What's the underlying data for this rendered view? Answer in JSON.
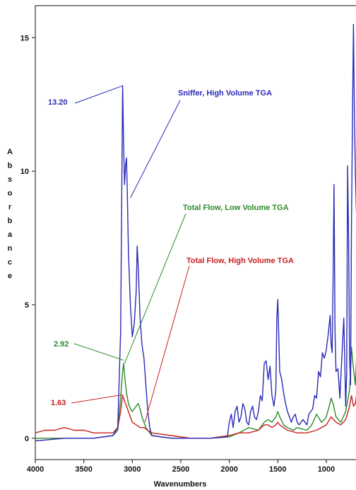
{
  "chart_data": {
    "type": "line",
    "xlabel": "Wavenumbers",
    "ylabel": "Absorbance",
    "x_reversed": true,
    "xlim": [
      4000,
      650
    ],
    "ylim": [
      -0.8,
      16.2
    ],
    "x_ticks": [
      4000,
      3500,
      3000,
      2500,
      2000,
      1500,
      1000
    ],
    "x_tick_labels": [
      "4000",
      "3500",
      "3000",
      "2500",
      "2000",
      "1500",
      "1000"
    ],
    "y_ticks": [
      0,
      5,
      10,
      15
    ],
    "y_tick_labels": [
      "0",
      "5",
      "10",
      "15"
    ],
    "grid": false,
    "series": [
      {
        "name": "Sniffer, High Volume TGA",
        "color": "#2a2ab8",
        "x": [
          4000,
          3700,
          3400,
          3200,
          3150,
          3120,
          3100,
          3090,
          3080,
          3070,
          3060,
          3050,
          3040,
          3020,
          3000,
          2980,
          2960,
          2950,
          2940,
          2920,
          2900,
          2880,
          2860,
          2840,
          2820,
          2800,
          2600,
          2400,
          2200,
          2020,
          2000,
          1980,
          1960,
          1940,
          1920,
          1900,
          1880,
          1860,
          1840,
          1820,
          1800,
          1780,
          1760,
          1740,
          1720,
          1700,
          1680,
          1660,
          1640,
          1620,
          1600,
          1580,
          1560,
          1540,
          1520,
          1510,
          1500,
          1490,
          1480,
          1460,
          1440,
          1420,
          1400,
          1380,
          1360,
          1340,
          1320,
          1300,
          1280,
          1260,
          1240,
          1220,
          1200,
          1180,
          1160,
          1140,
          1120,
          1100,
          1080,
          1060,
          1040,
          1020,
          1000,
          980,
          960,
          950,
          940,
          930,
          920,
          910,
          900,
          880,
          860,
          840,
          820,
          810,
          800,
          790,
          780,
          770,
          760,
          750,
          740,
          730,
          720,
          710,
          700,
          690,
          680,
          670,
          660
        ],
        "y": [
          -0.1,
          0.0,
          0.0,
          0.1,
          0.4,
          4.0,
          13.2,
          11.0,
          9.5,
          10.2,
          10.5,
          9.0,
          7.0,
          5.0,
          3.8,
          4.3,
          5.5,
          7.2,
          6.5,
          4.5,
          3.5,
          3.0,
          2.0,
          1.0,
          0.4,
          0.1,
          0.0,
          0.0,
          0.0,
          0.05,
          0.6,
          0.9,
          0.4,
          1.0,
          1.2,
          0.6,
          0.8,
          1.3,
          1.1,
          0.6,
          0.5,
          1.0,
          1.2,
          0.8,
          0.7,
          1.0,
          1.6,
          1.4,
          2.8,
          2.9,
          2.2,
          2.7,
          1.6,
          1.2,
          1.8,
          4.5,
          5.2,
          3.8,
          2.5,
          2.2,
          1.7,
          1.3,
          1.0,
          0.8,
          0.6,
          0.8,
          0.9,
          0.6,
          0.5,
          0.6,
          0.7,
          0.6,
          0.5,
          0.9,
          1.0,
          1.1,
          1.6,
          1.5,
          2.5,
          2.3,
          3.2,
          3.0,
          3.3,
          3.9,
          4.6,
          3.5,
          3.2,
          6.0,
          9.5,
          4.0,
          2.5,
          2.6,
          1.5,
          3.0,
          4.5,
          3.0,
          1.2,
          2.5,
          10.2,
          7.5,
          3.0,
          2.0,
          8.0,
          12.0,
          15.5,
          12.0,
          10.0,
          8.5,
          12.0,
          13.0,
          9.0
        ]
      },
      {
        "name": "Total Flow, Low Volume TGA",
        "color": "#2a8a2a",
        "x": [
          4000,
          3700,
          3400,
          3200,
          3150,
          3120,
          3100,
          3090,
          3080,
          3070,
          3060,
          3040,
          3020,
          3000,
          2960,
          2940,
          2920,
          2900,
          2880,
          2860,
          2840,
          2800,
          2600,
          2400,
          2200,
          2000,
          1900,
          1800,
          1700,
          1640,
          1600,
          1560,
          1520,
          1500,
          1480,
          1440,
          1400,
          1340,
          1300,
          1200,
          1150,
          1100,
          1050,
          1020,
          1000,
          970,
          950,
          930,
          900,
          850,
          800,
          780,
          760,
          740,
          720,
          700,
          680,
          660
        ],
        "y": [
          0.0,
          0.0,
          0.0,
          0.1,
          0.3,
          1.5,
          2.5,
          2.8,
          2.4,
          2.0,
          1.7,
          1.3,
          1.1,
          1.0,
          1.2,
          1.3,
          1.1,
          0.8,
          0.6,
          0.4,
          0.3,
          0.1,
          0.0,
          0.0,
          0.0,
          0.05,
          0.2,
          0.4,
          0.3,
          0.6,
          0.7,
          0.6,
          0.8,
          1.0,
          0.8,
          0.5,
          0.4,
          0.3,
          0.4,
          0.3,
          0.5,
          0.9,
          0.6,
          0.7,
          0.8,
          1.2,
          1.5,
          1.3,
          0.8,
          0.6,
          1.0,
          1.4,
          1.8,
          3.4,
          2.6,
          2.0,
          3.8,
          2.4
        ]
      },
      {
        "name": "Total Flow, High Volume TGA",
        "color": "#c82020",
        "x": [
          4000,
          3900,
          3800,
          3700,
          3600,
          3500,
          3400,
          3300,
          3200,
          3150,
          3120,
          3100,
          3080,
          3060,
          3040,
          3020,
          3000,
          2960,
          2920,
          2880,
          2840,
          2800,
          2600,
          2400,
          2200,
          2000,
          1900,
          1800,
          1700,
          1640,
          1600,
          1560,
          1520,
          1500,
          1480,
          1440,
          1400,
          1300,
          1200,
          1100,
          1000,
          950,
          900,
          850,
          800,
          760,
          740,
          720,
          700,
          680,
          660
        ],
        "y": [
          0.2,
          0.3,
          0.3,
          0.4,
          0.3,
          0.3,
          0.2,
          0.2,
          0.2,
          0.4,
          1.0,
          1.6,
          1.4,
          1.2,
          1.0,
          0.8,
          0.6,
          0.5,
          0.4,
          0.4,
          0.3,
          0.2,
          0.1,
          0.0,
          0.0,
          0.1,
          0.2,
          0.2,
          0.3,
          0.5,
          0.5,
          0.4,
          0.5,
          0.6,
          0.5,
          0.4,
          0.3,
          0.2,
          0.2,
          0.3,
          0.5,
          0.8,
          0.6,
          0.5,
          0.7,
          1.2,
          1.6,
          1.2,
          1.3,
          1.8,
          1.2
        ]
      }
    ],
    "annotations": [
      {
        "text": "13.20",
        "color": "#2a2ab8",
        "x": 3100,
        "y": 13.2
      },
      {
        "text": "2.92",
        "color": "#2a8a2a",
        "x": 3090,
        "y": 2.92
      },
      {
        "text": "1.63",
        "color": "#c82020",
        "x": 3100,
        "y": 1.63
      }
    ],
    "series_labels": [
      {
        "text": "Sniffer, High Volume TGA",
        "color": "#2a2ab8",
        "x": 3020,
        "y": 9.0
      },
      {
        "text": "Total Flow, Low Volume TGA",
        "color": "#2a8a2a",
        "x": 3080,
        "y": 2.8
      },
      {
        "text": "Total Flow, High Volume TGA",
        "color": "#c82020",
        "x": 2870,
        "y": 0.6
      }
    ]
  }
}
